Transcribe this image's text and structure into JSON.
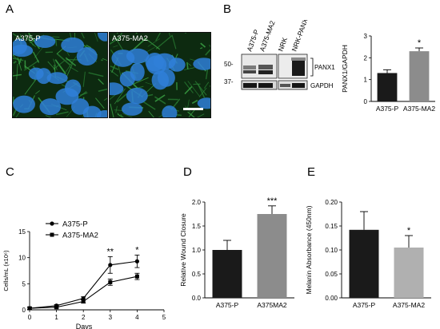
{
  "figure": {
    "panel_labels": [
      "A",
      "B",
      "C",
      "D",
      "E"
    ]
  },
  "panel_a": {
    "images": [
      {
        "label": "A375-P"
      },
      {
        "label": "A375-MA2"
      }
    ]
  },
  "panel_b": {
    "blot": {
      "lane_labels": [
        "A375-P",
        "A375-MA2",
        "NRK",
        "NRK-PANX1"
      ],
      "mw_markers": [
        "50-",
        "37-"
      ],
      "band_labels": [
        "PANX1",
        "GAPDH"
      ]
    }
  },
  "chart_data": [
    {
      "panel": "B",
      "type": "bar",
      "categories": [
        "A375-P",
        "A375-MA2"
      ],
      "values": [
        1.3,
        2.3
      ],
      "errors": [
        0.15,
        0.15
      ],
      "significance": [
        "",
        "*"
      ],
      "bar_colors": [
        "#1a1a1a",
        "#8c8c8c"
      ],
      "ylabel": "PANX1/GAPDH",
      "ylim": [
        0,
        3
      ],
      "yticks": [
        "0",
        "1",
        "2",
        "3"
      ]
    },
    {
      "panel": "C",
      "type": "line",
      "x": [
        0,
        1,
        2,
        3,
        4
      ],
      "xticks": [
        "0",
        "1",
        "2",
        "3",
        "4",
        "5"
      ],
      "xlim": [
        0,
        5
      ],
      "xlabel": "Days",
      "ylabel": "Cells/mL (x10⁶)",
      "ylim": [
        0,
        15
      ],
      "yticks": [
        "0",
        "5",
        "10",
        "15"
      ],
      "series": [
        {
          "name": "A375-P",
          "marker": "circle",
          "values": [
            0.3,
            0.8,
            2.2,
            8.6,
            9.3
          ],
          "errors": [
            0.2,
            0.2,
            0.3,
            1.6,
            1.2
          ]
        },
        {
          "name": "A375-MA2",
          "marker": "square",
          "values": [
            0.3,
            0.5,
            1.6,
            5.3,
            6.4
          ],
          "errors": [
            0.2,
            0.2,
            0.3,
            0.6,
            0.6
          ]
        }
      ],
      "annotations": [
        {
          "x": 3,
          "text": "**"
        },
        {
          "x": 4,
          "text": "*"
        }
      ]
    },
    {
      "panel": "D",
      "type": "bar",
      "categories": [
        "A375-P",
        "A375MA2"
      ],
      "values": [
        1.0,
        1.75
      ],
      "errors": [
        0.2,
        0.17
      ],
      "significance": [
        "",
        "***"
      ],
      "bar_colors": [
        "#1a1a1a",
        "#8c8c8c"
      ],
      "ylabel": "Relative Wound Closure",
      "ylim": [
        0,
        2.0
      ],
      "yticks": [
        "0.0",
        "0.5",
        "1.0",
        "1.5",
        "2.0"
      ]
    },
    {
      "panel": "E",
      "type": "bar",
      "categories": [
        "A375-P",
        "A375-MA2"
      ],
      "values": [
        0.142,
        0.105
      ],
      "errors": [
        0.038,
        0.025
      ],
      "significance": [
        "",
        "*"
      ],
      "bar_colors": [
        "#1a1a1a",
        "#b0b0b0"
      ],
      "ylabel": "Melanin Absorbance (450nm)",
      "ylim": [
        0,
        0.2
      ],
      "yticks": [
        "0.00",
        "0.05",
        "0.10",
        "0.15",
        "0.20"
      ]
    }
  ]
}
